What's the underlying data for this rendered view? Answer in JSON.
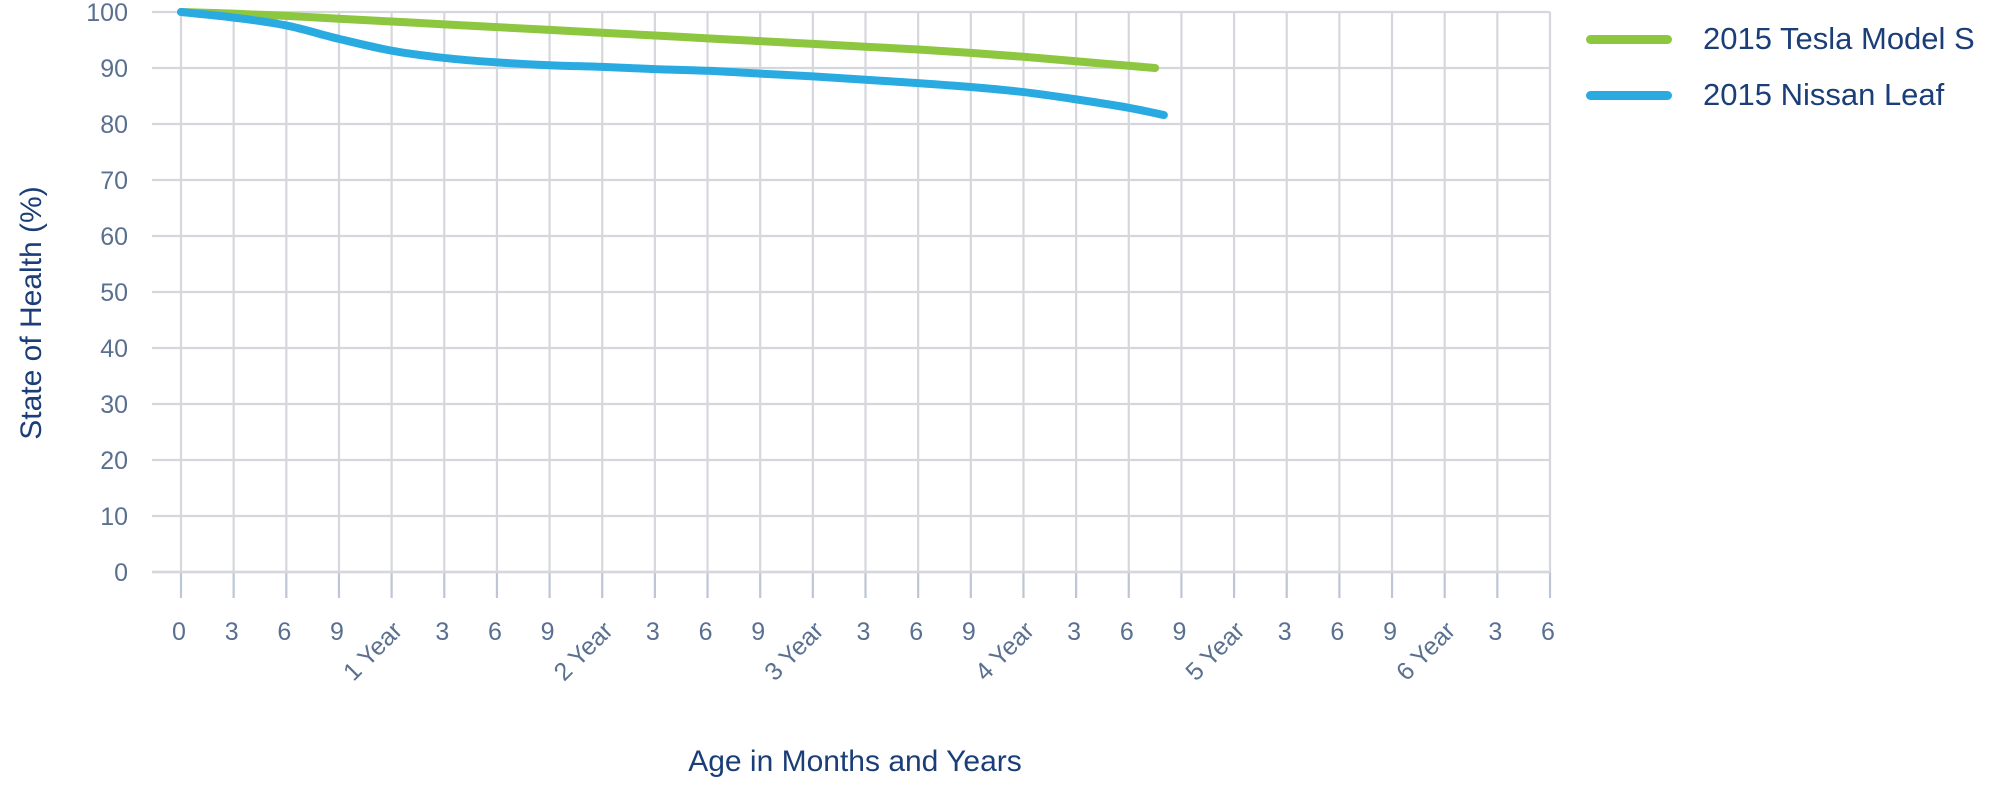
{
  "chart_data": {
    "type": "line",
    "title": "",
    "xlabel": "Age in Months and Years",
    "ylabel": "State of Health (%)",
    "x_unit": "months",
    "xlim_months": [
      0,
      78
    ],
    "ylim": [
      0,
      100
    ],
    "grid": true,
    "legend_position": "top-right",
    "y_ticks": [
      0,
      10,
      20,
      30,
      40,
      50,
      60,
      70,
      80,
      90,
      100
    ],
    "x_tick_months": [
      0,
      3,
      6,
      9,
      12,
      15,
      18,
      21,
      24,
      27,
      30,
      33,
      36,
      39,
      42,
      45,
      48,
      51,
      54,
      57,
      60,
      63,
      66,
      69,
      72,
      75,
      78
    ],
    "x_tick_labels": [
      "0",
      "3",
      "6",
      "9",
      "1 Year",
      "3",
      "6",
      "9",
      "2 Year",
      "3",
      "6",
      "9",
      "3 Year",
      "3",
      "6",
      "9",
      "4 Year",
      "3",
      "6",
      "9",
      "5 Year",
      "3",
      "6",
      "9",
      "6 Year",
      "3",
      "6"
    ],
    "series": [
      {
        "name": "2015 Tesla Model S",
        "color": "#8DC63F",
        "x_months": [
          0,
          3,
          6,
          9,
          12,
          15,
          18,
          21,
          24,
          27,
          30,
          33,
          36,
          39,
          42,
          45,
          48,
          51,
          54,
          55.5
        ],
        "values": [
          100,
          99.7,
          99.3,
          98.8,
          98.3,
          97.8,
          97.3,
          96.8,
          96.3,
          95.8,
          95.3,
          94.8,
          94.3,
          93.8,
          93.3,
          92.7,
          92.0,
          91.2,
          90.4,
          90.0
        ]
      },
      {
        "name": "2015 Nissan Leaf",
        "color": "#29ABE2",
        "x_months": [
          0,
          3,
          6,
          9,
          12,
          15,
          18,
          21,
          24,
          27,
          30,
          33,
          36,
          39,
          42,
          45,
          48,
          51,
          54,
          56
        ],
        "values": [
          100,
          99.0,
          97.6,
          95.2,
          93.1,
          91.8,
          91.0,
          90.5,
          90.2,
          89.8,
          89.5,
          89.0,
          88.5,
          87.9,
          87.3,
          86.6,
          85.7,
          84.4,
          82.9,
          81.6
        ]
      }
    ]
  },
  "colors": {
    "axis_title": "#1B3E78",
    "tick_label": "#5A7090",
    "gridline": "#D5D7DC",
    "tick_mark": "#BCC6D4",
    "background": "#FFFFFF"
  }
}
